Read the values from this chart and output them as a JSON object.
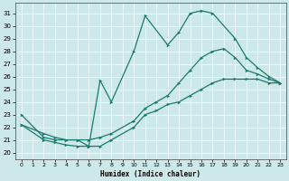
{
  "xlabel": "Humidex (Indice chaleur)",
  "xlim": [
    -0.5,
    23.5
  ],
  "ylim": [
    19.5,
    31.8
  ],
  "yticks": [
    20,
    21,
    22,
    23,
    24,
    25,
    26,
    27,
    28,
    29,
    30,
    31
  ],
  "xticks": [
    0,
    1,
    2,
    3,
    4,
    5,
    6,
    7,
    8,
    9,
    10,
    11,
    12,
    13,
    14,
    15,
    16,
    17,
    18,
    19,
    20,
    21,
    22,
    23
  ],
  "bg_color": "#cce8e8",
  "line_color": "#1a7a6e",
  "line2_x": [
    0,
    2,
    3,
    4,
    5,
    6,
    7,
    8,
    10,
    11,
    12,
    13,
    14,
    15,
    16,
    17,
    18,
    19,
    20,
    21,
    22,
    23
  ],
  "line2_y": [
    22.2,
    21.5,
    21.2,
    21.0,
    21.0,
    21.0,
    21.2,
    21.5,
    22.5,
    23.5,
    24.0,
    24.5,
    25.5,
    26.5,
    27.5,
    28.0,
    28.2,
    27.5,
    26.5,
    26.2,
    25.8,
    25.5
  ],
  "line3_x": [
    0,
    2,
    3,
    4,
    5,
    6,
    7,
    8,
    10,
    11,
    12,
    13,
    14,
    15,
    16,
    17,
    18,
    19,
    20,
    21,
    22,
    23
  ],
  "line3_y": [
    22.2,
    21.0,
    20.8,
    20.6,
    20.5,
    20.5,
    20.5,
    21.0,
    22.0,
    23.0,
    23.3,
    23.8,
    24.0,
    24.5,
    25.0,
    25.5,
    25.8,
    25.8,
    25.8,
    25.8,
    25.5,
    25.5
  ],
  "line_spiky_x": [
    0,
    2,
    3,
    4,
    5,
    6,
    7,
    8,
    10,
    11,
    13,
    14,
    15,
    16,
    17,
    19,
    20,
    21,
    22,
    23
  ],
  "line_spiky_y": [
    23.0,
    21.2,
    21.0,
    21.0,
    21.0,
    20.5,
    25.7,
    24.0,
    28.0,
    30.8,
    28.5,
    29.5,
    31.0,
    31.2,
    31.0,
    29.0,
    27.5,
    26.7,
    26.0,
    25.5
  ]
}
